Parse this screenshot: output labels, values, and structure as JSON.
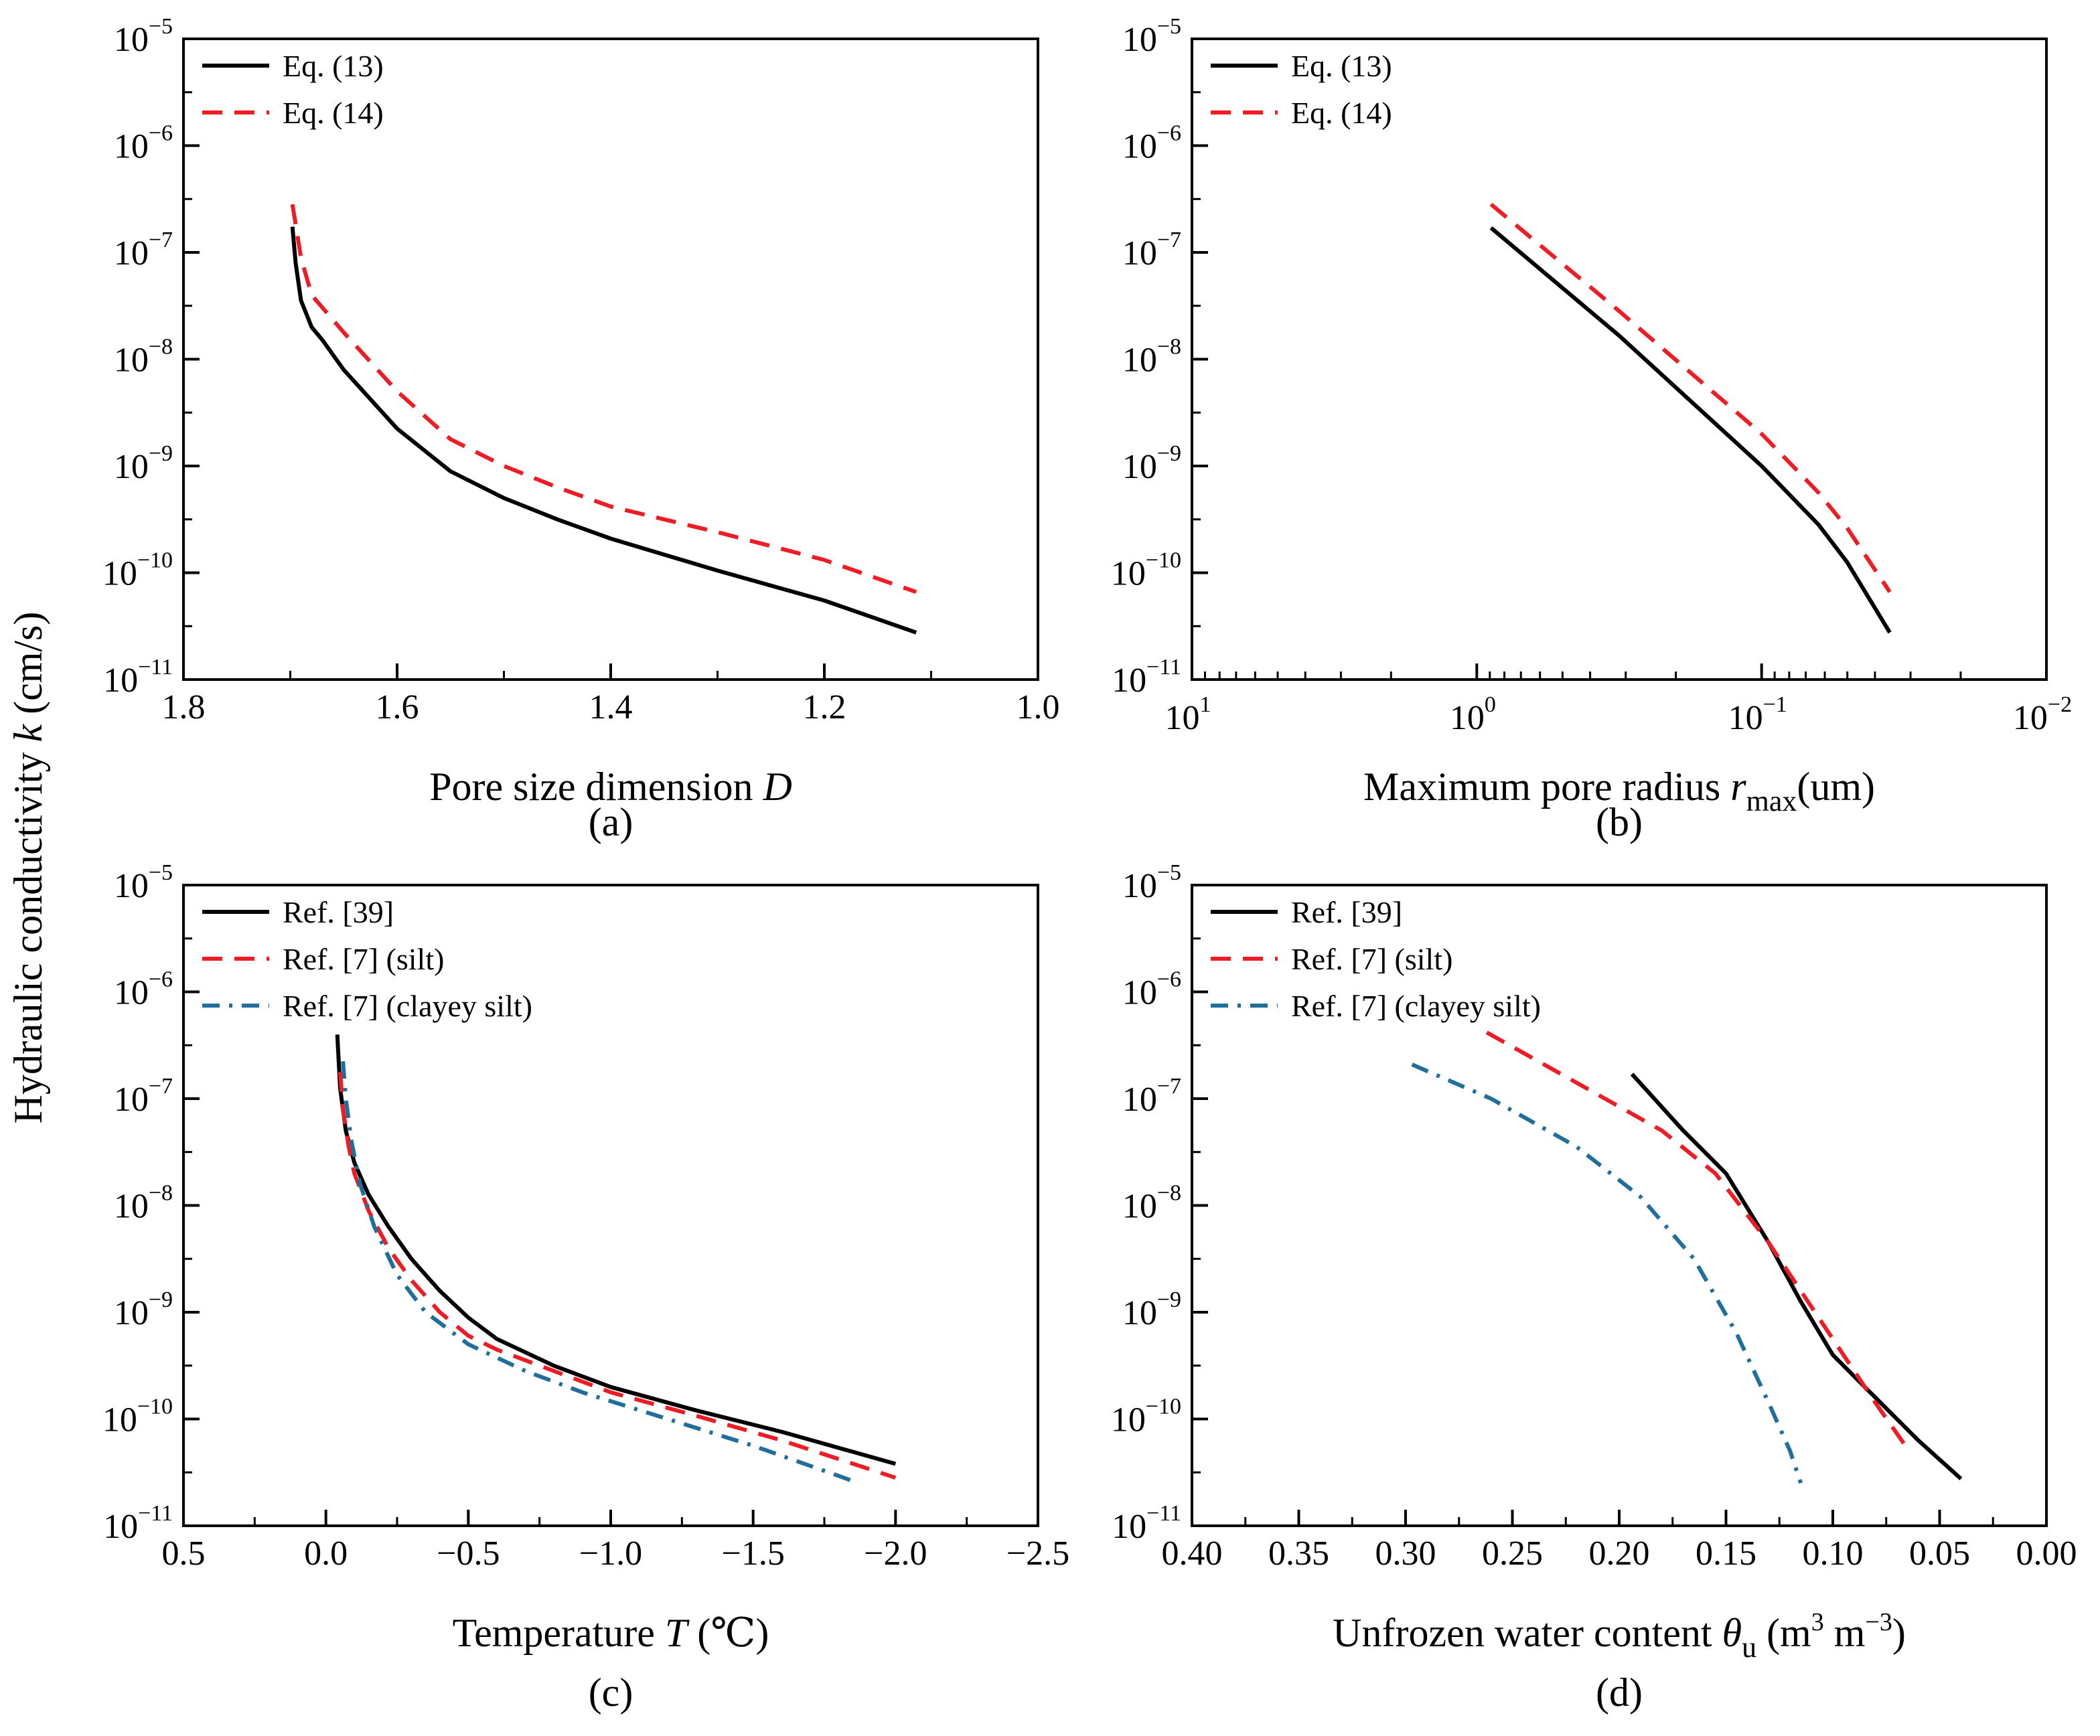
{
  "ylabel": {
    "prefix": "Hydraulic conductivity ",
    "var": "k",
    "suffix": " (cm/s)"
  },
  "colors": {
    "black": "#000000",
    "red": "#ee1c25",
    "blue": "#1f6e9b"
  },
  "chart_data": [
    {
      "id": "a",
      "type": "line",
      "panel_label": "(a)",
      "xlabel": {
        "text": "Pore size dimension ",
        "var": "D"
      },
      "x_scale": "linear",
      "x_lim": [
        1.8,
        1.0
      ],
      "x_ticks": [
        1.8,
        1.6,
        1.4,
        1.2,
        1.0
      ],
      "x_tick_labels": [
        "1.8",
        "1.6",
        "1.4",
        "1.2",
        "1.0"
      ],
      "y_scale": "log",
      "y_lim": [
        -11,
        -5
      ],
      "legend": "top-left",
      "series": [
        {
          "name": "Eq. (13)",
          "style": "solid",
          "color": "#000000",
          "x": [
            1.698,
            1.695,
            1.69,
            1.68,
            1.67,
            1.65,
            1.6,
            1.55,
            1.5,
            1.45,
            1.4,
            1.3,
            1.2,
            1.114
          ],
          "logy": [
            -6.76,
            -7.1,
            -7.45,
            -7.7,
            -7.82,
            -8.1,
            -8.65,
            -9.05,
            -9.3,
            -9.5,
            -9.68,
            -9.98,
            -10.26,
            -10.56
          ]
        },
        {
          "name": "Eq. (14)",
          "style": "dashed",
          "color": "#ee1c25",
          "x": [
            1.698,
            1.69,
            1.68,
            1.65,
            1.6,
            1.55,
            1.5,
            1.45,
            1.4,
            1.3,
            1.2,
            1.114
          ],
          "logy": [
            -6.55,
            -7.05,
            -7.4,
            -7.75,
            -8.3,
            -8.75,
            -9.0,
            -9.2,
            -9.38,
            -9.62,
            -9.88,
            -10.18
          ]
        }
      ]
    },
    {
      "id": "b",
      "type": "line",
      "panel_label": "(b)",
      "xlabel": {
        "text": "Maximum pore radius ",
        "var": "r",
        "sub": "max",
        "unit": "(um)"
      },
      "x_scale": "log",
      "x_lim": [
        1,
        -2
      ],
      "x_ticks": [
        1,
        0,
        -1,
        -2
      ],
      "x_tick_labels": [
        "10",
        "10",
        "10",
        "10"
      ],
      "x_tick_exponents": [
        "1",
        "0",
        "−1",
        "−2"
      ],
      "y_scale": "log",
      "y_lim": [
        -11,
        -5
      ],
      "legend": "top-left",
      "series": [
        {
          "name": "Eq. (13)",
          "style": "solid",
          "color": "#000000",
          "logx": [
            -0.05,
            -0.5,
            -1.0,
            -1.2,
            -1.3,
            -1.45
          ],
          "logy": [
            -6.77,
            -7.78,
            -9.0,
            -9.55,
            -9.9,
            -10.56
          ]
        },
        {
          "name": "Eq. (14)",
          "style": "dashed",
          "color": "#ee1c25",
          "logx": [
            -0.05,
            -0.5,
            -1.0,
            -1.2,
            -1.3,
            -1.45
          ],
          "logy": [
            -6.55,
            -7.55,
            -8.7,
            -9.25,
            -9.58,
            -10.18
          ]
        }
      ]
    },
    {
      "id": "c",
      "type": "line",
      "panel_label": "(c)",
      "xlabel": {
        "text": "Temperature ",
        "var": "T",
        "unit": " (℃)"
      },
      "x_scale": "linear",
      "x_lim": [
        0.5,
        -2.5
      ],
      "x_ticks": [
        0.5,
        0.0,
        -0.5,
        -1.0,
        -1.5,
        -2.0,
        -2.5
      ],
      "x_tick_labels": [
        "0.5",
        "0.0",
        "−0.5",
        "−1.0",
        "−1.5",
        "−2.0",
        "−2.5"
      ],
      "y_scale": "log",
      "y_lim": [
        -11,
        -5
      ],
      "legend": "top-left",
      "series": [
        {
          "name": "Ref. [39]",
          "style": "solid",
          "color": "#000000",
          "x": [
            -0.04,
            -0.05,
            -0.07,
            -0.1,
            -0.15,
            -0.22,
            -0.3,
            -0.4,
            -0.5,
            -0.6,
            -0.8,
            -1.0,
            -1.3,
            -1.6,
            -2.0
          ],
          "logy": [
            -6.4,
            -6.9,
            -7.3,
            -7.6,
            -7.9,
            -8.2,
            -8.5,
            -8.8,
            -9.05,
            -9.25,
            -9.5,
            -9.7,
            -9.92,
            -10.12,
            -10.42
          ]
        },
        {
          "name": "Ref. [7] (silt)",
          "style": "dashed",
          "color": "#ee1c25",
          "x": [
            -0.05,
            -0.06,
            -0.08,
            -0.1,
            -0.15,
            -0.22,
            -0.3,
            -0.4,
            -0.5,
            -0.6,
            -0.8,
            -1.0,
            -1.3,
            -1.6,
            -2.0
          ],
          "logy": [
            -6.75,
            -7.1,
            -7.45,
            -7.7,
            -8.05,
            -8.4,
            -8.7,
            -9.0,
            -9.22,
            -9.35,
            -9.55,
            -9.75,
            -9.97,
            -10.2,
            -10.55
          ]
        },
        {
          "name": "Ref. [7] (clayey silt)",
          "style": "dashdot",
          "color": "#1f6e9b",
          "x": [
            -0.06,
            -0.07,
            -0.09,
            -0.12,
            -0.17,
            -0.25,
            -0.35,
            -0.5,
            -0.7,
            -0.9,
            -1.2,
            -1.5,
            -1.85
          ],
          "logy": [
            -6.65,
            -7.0,
            -7.4,
            -7.8,
            -8.2,
            -8.65,
            -9.0,
            -9.3,
            -9.55,
            -9.75,
            -10.0,
            -10.25,
            -10.58
          ]
        }
      ]
    },
    {
      "id": "d",
      "type": "line",
      "panel_label": "(d)",
      "xlabel": {
        "text": "Unfrozen water content ",
        "var": "θ",
        "sub": "u",
        "unit": "m",
        "unit2": "m"
      },
      "x_scale": "linear",
      "x_lim": [
        0.4,
        0.0
      ],
      "x_ticks": [
        0.4,
        0.35,
        0.3,
        0.25,
        0.2,
        0.15,
        0.1,
        0.05,
        0.0
      ],
      "x_tick_labels": [
        "0.40",
        "0.35",
        "0.30",
        "0.25",
        "0.20",
        "0.15",
        "0.10",
        "0.05",
        "0.00"
      ],
      "y_scale": "log",
      "y_lim": [
        -11,
        -5
      ],
      "legend": "top-left",
      "series": [
        {
          "name": "Ref. [39]",
          "style": "solid",
          "color": "#000000",
          "x": [
            0.194,
            0.17,
            0.15,
            0.13,
            0.115,
            0.1,
            0.085,
            0.06,
            0.04
          ],
          "logy": [
            -6.77,
            -7.3,
            -7.7,
            -8.35,
            -8.9,
            -9.4,
            -9.7,
            -10.2,
            -10.56
          ]
        },
        {
          "name": "Ref. [7] (silt)",
          "style": "dashed",
          "color": "#ee1c25",
          "x": [
            0.262,
            0.22,
            0.18,
            0.155,
            0.13,
            0.11,
            0.095,
            0.08,
            0.065
          ],
          "logy": [
            -6.38,
            -6.85,
            -7.3,
            -7.7,
            -8.35,
            -8.95,
            -9.4,
            -9.85,
            -10.28
          ]
        },
        {
          "name": "Ref. [7] (clayey silt)",
          "style": "dashdot",
          "color": "#1f6e9b",
          "x": [
            0.297,
            0.26,
            0.22,
            0.19,
            0.165,
            0.145,
            0.13,
            0.12,
            0.115
          ],
          "logy": [
            -6.68,
            -7.0,
            -7.45,
            -7.92,
            -8.5,
            -9.2,
            -9.85,
            -10.3,
            -10.6
          ]
        }
      ]
    }
  ]
}
